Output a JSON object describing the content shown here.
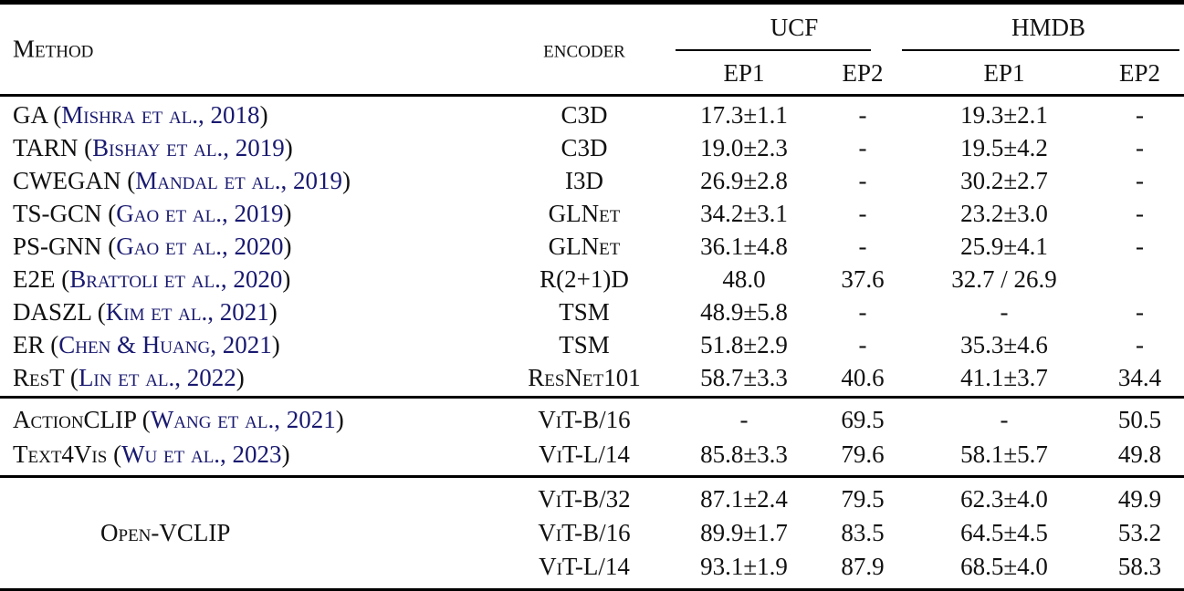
{
  "colors": {
    "link": "#191970",
    "text": "#111111",
    "rule": "#000000",
    "background": "#ffffff"
  },
  "table": {
    "header": {
      "method": "Method",
      "encoder": "encoder",
      "groups": [
        {
          "label": "UCF"
        },
        {
          "label": "HMDB"
        }
      ],
      "subcols": [
        "EP1",
        "EP2",
        "EP1",
        "EP2"
      ]
    },
    "sections": [
      {
        "rows": [
          {
            "method": [
              {
                "t": "GA (",
                "link": false
              },
              {
                "t": "Mishra et al., 2018",
                "link": true
              },
              {
                "t": ")",
                "link": false
              }
            ],
            "encoder": "C3D",
            "cells": [
              "17.3±1.1",
              "-",
              "19.3±2.1",
              "-"
            ]
          },
          {
            "method": [
              {
                "t": "TARN (",
                "link": false
              },
              {
                "t": "Bishay et al., 2019",
                "link": true
              },
              {
                "t": ")",
                "link": false
              }
            ],
            "encoder": "C3D",
            "cells": [
              "19.0±2.3",
              "-",
              "19.5±4.2",
              "-"
            ]
          },
          {
            "method": [
              {
                "t": "CWEGAN (",
                "link": false
              },
              {
                "t": "Mandal et al., 2019",
                "link": true
              },
              {
                "t": ")",
                "link": false
              }
            ],
            "encoder": "I3D",
            "cells": [
              "26.9±2.8",
              "-",
              "30.2±2.7",
              "-"
            ]
          },
          {
            "method": [
              {
                "t": "TS-GCN (",
                "link": false
              },
              {
                "t": "Gao et al., 2019",
                "link": true
              },
              {
                "t": ")",
                "link": false
              }
            ],
            "encoder": "GLNet",
            "cells": [
              "34.2±3.1",
              "-",
              "23.2±3.0",
              "-"
            ]
          },
          {
            "method": [
              {
                "t": "PS-GNN (",
                "link": false
              },
              {
                "t": "Gao et al., 2020",
                "link": true
              },
              {
                "t": ")",
                "link": false
              }
            ],
            "encoder": "GLNet",
            "cells": [
              "36.1±4.8",
              "-",
              "25.9±4.1",
              "-"
            ]
          },
          {
            "method": [
              {
                "t": "E2E (",
                "link": false
              },
              {
                "t": "Brattoli et al., 2020",
                "link": true
              },
              {
                "t": ")",
                "link": false
              }
            ],
            "encoder": "R(2+1)D",
            "cells": [
              "48.0",
              "37.6",
              "32.7 / 26.9",
              ""
            ]
          },
          {
            "method": [
              {
                "t": "DASZL (",
                "link": false
              },
              {
                "t": "Kim et al., 2021",
                "link": true
              },
              {
                "t": ")",
                "link": false
              }
            ],
            "encoder": "TSM",
            "cells": [
              "48.9±5.8",
              "-",
              "-",
              "-"
            ]
          },
          {
            "method": [
              {
                "t": "ER (",
                "link": false
              },
              {
                "t": "Chen & Huang, 2021",
                "link": true
              },
              {
                "t": ")",
                "link": false
              }
            ],
            "encoder": "TSM",
            "cells": [
              "51.8±2.9",
              "-",
              "35.3±4.6",
              "-"
            ]
          },
          {
            "method": [
              {
                "t": "ResT (",
                "link": false
              },
              {
                "t": "Lin et al., 2022",
                "link": true
              },
              {
                "t": ")",
                "link": false
              }
            ],
            "encoder": "ResNet101",
            "cells": [
              "58.7±3.3",
              "40.6",
              "41.1±3.7",
              "34.4"
            ]
          }
        ]
      },
      {
        "rows": [
          {
            "method": [
              {
                "t": "ActionCLIP (",
                "link": false
              },
              {
                "t": "Wang et al., 2021",
                "link": true
              },
              {
                "t": ")",
                "link": false
              }
            ],
            "encoder": "ViT-B/16",
            "cells": [
              "-",
              "69.5",
              "-",
              "50.5"
            ]
          },
          {
            "method": [
              {
                "t": "Text4Vis (",
                "link": false
              },
              {
                "t": "Wu et al., 2023",
                "link": true
              },
              {
                "t": ")",
                "link": false
              }
            ],
            "encoder": "ViT-L/14",
            "cells": [
              "85.8±3.3",
              "79.6",
              "58.1±5.7",
              "49.8"
            ]
          }
        ]
      },
      {
        "label": "Open-VCLIP",
        "rows": [
          {
            "encoder": "ViT-B/32",
            "cells": [
              "87.1±2.4",
              "79.5",
              "62.3±4.0",
              "49.9"
            ]
          },
          {
            "encoder": "ViT-B/16",
            "cells": [
              "89.9±1.7",
              "83.5",
              "64.5±4.5",
              "53.2"
            ]
          },
          {
            "encoder": "ViT-L/14",
            "cells": [
              "93.1±1.9",
              "87.9",
              "68.5±4.0",
              "58.3"
            ]
          }
        ]
      }
    ]
  }
}
